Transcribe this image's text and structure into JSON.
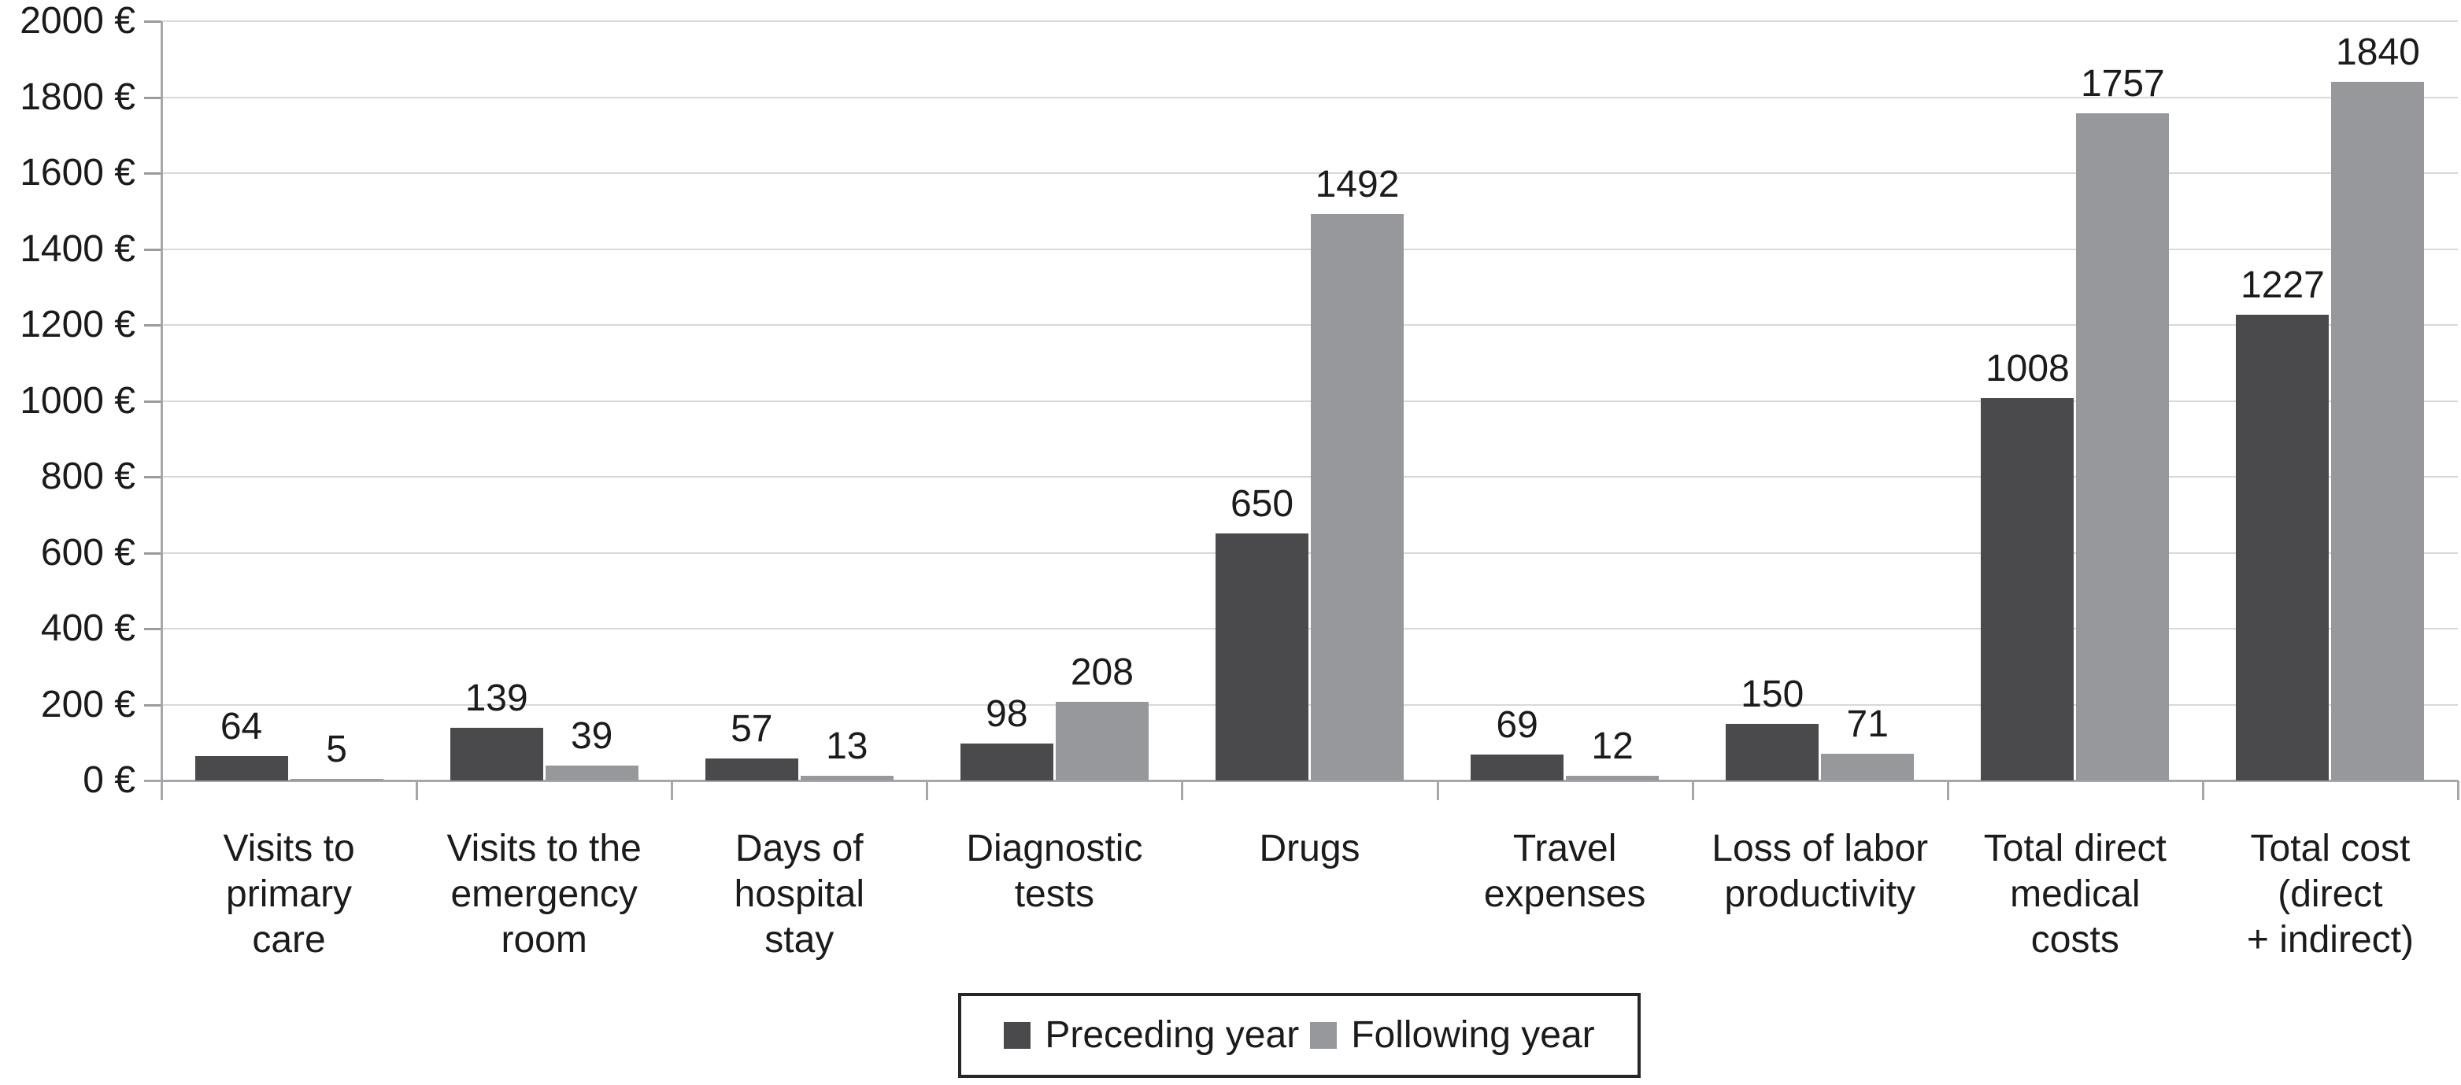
{
  "chart_data": {
    "type": "bar",
    "title": "",
    "categories": [
      "Visits to\nprimary\ncare",
      "Visits to the\nemergency\nroom",
      "Days of\nhospital\nstay",
      "Diagnostic\ntests",
      "Drugs",
      "Travel\nexpenses",
      "Loss of labor\nproductivity",
      "Total direct\nmedical\ncosts",
      "Total cost\n(direct\n+ indirect)"
    ],
    "series": [
      {
        "name": "Preceding year",
        "color": "#4a4a4c",
        "values": [
          64,
          139,
          57,
          98,
          650,
          69,
          150,
          1008,
          1227
        ]
      },
      {
        "name": "Following year",
        "color": "#97989b",
        "values": [
          5,
          39,
          13,
          208,
          1492,
          12,
          71,
          1757,
          1840
        ]
      }
    ],
    "ylim": [
      0,
      2000
    ],
    "yticks": [
      "0 €",
      "200 €",
      "400 €",
      "600 €",
      "800 €",
      "1000 €",
      "1200 €",
      "1400 €",
      "1600 €",
      "1800 €",
      "2000 €"
    ],
    "grid": "horizontal",
    "legend_position": "bottom-center",
    "bar_value_labels_shown": true
  }
}
